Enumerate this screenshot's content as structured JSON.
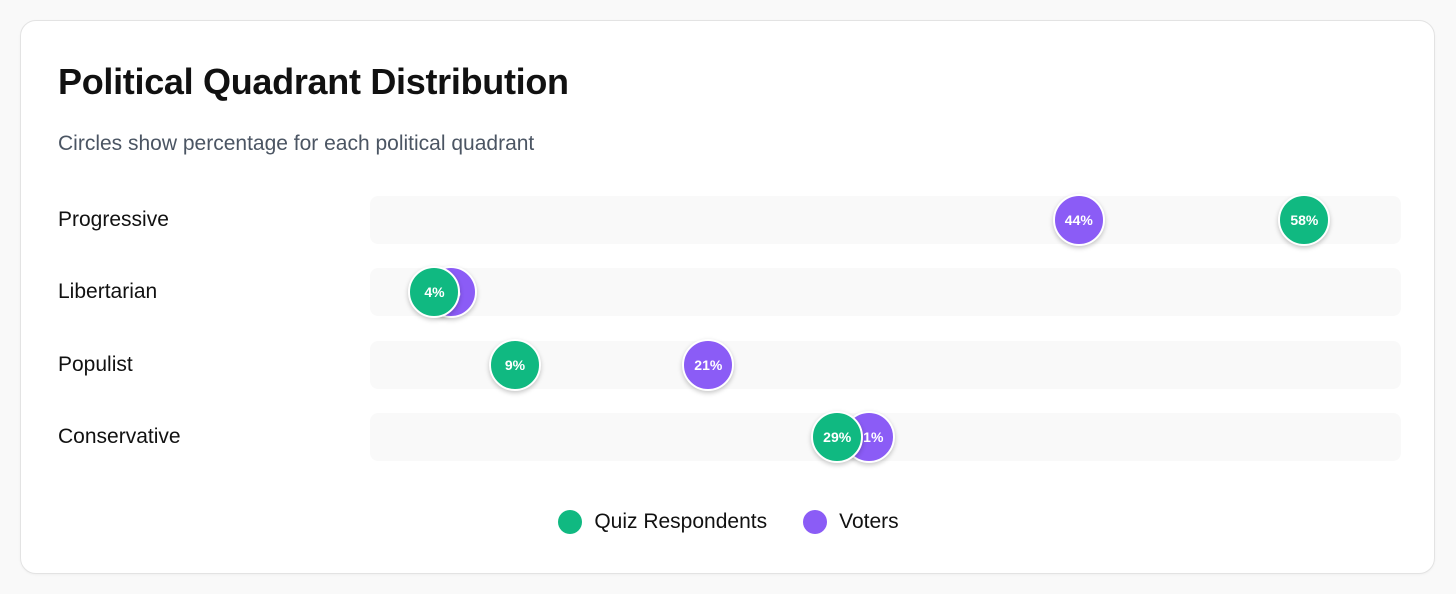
{
  "chart_data": {
    "type": "scatter",
    "title": "Political Quadrant Distribution",
    "subtitle": "Circles show percentage for each political quadrant",
    "categories": [
      "Progressive",
      "Libertarian",
      "Populist",
      "Conservative"
    ],
    "series": [
      {
        "name": "Quiz Respondents",
        "color": "#10b981",
        "values": [
          58,
          4,
          9,
          29
        ]
      },
      {
        "name": "Voters",
        "color": "#8b5cf6",
        "values": [
          44,
          5,
          21,
          31
        ]
      }
    ],
    "xlim": [
      0,
      64
    ],
    "legend_position": "bottom-center",
    "grid": false
  }
}
